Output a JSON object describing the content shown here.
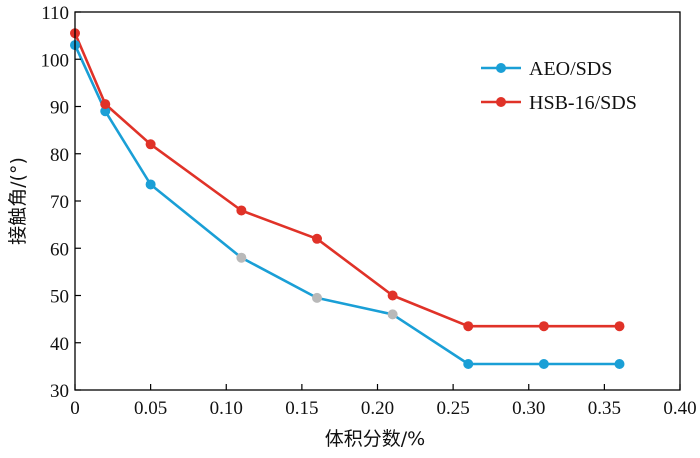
{
  "chart_data": {
    "type": "line",
    "xlabel": "体积分数/%",
    "ylabel": "接触角/(°)",
    "xlim": [
      0,
      0.4
    ],
    "ylim": [
      30,
      110
    ],
    "x_ticks": [
      "0",
      "0.05",
      "0.10",
      "0.15",
      "0.20",
      "0.25",
      "0.30",
      "0.35",
      "0.40"
    ],
    "y_ticks": [
      "30",
      "40",
      "50",
      "60",
      "70",
      "80",
      "90",
      "100",
      "110"
    ],
    "legend_position": "top-right",
    "grid": false,
    "series": [
      {
        "name": "AEO/SDS",
        "color": "#1a9fd6",
        "x": [
          0,
          0.02,
          0.05,
          0.11,
          0.16,
          0.21,
          0.26,
          0.31,
          0.36
        ],
        "y": [
          103,
          89,
          73.5,
          58,
          49.5,
          46,
          35.5,
          35.5,
          35.5
        ],
        "marker_colors": [
          "#1a9fd6",
          "#1a9fd6",
          "#1a9fd6",
          "#b9b9b9",
          "#b9b9b9",
          "#b9b9b9",
          "#1a9fd6",
          "#1a9fd6",
          "#1a9fd6"
        ]
      },
      {
        "name": "HSB-16/SDS",
        "color": "#e03228",
        "x": [
          0,
          0.02,
          0.05,
          0.11,
          0.16,
          0.21,
          0.26,
          0.31,
          0.36
        ],
        "y": [
          105.5,
          90.5,
          82,
          68,
          62,
          50,
          43.5,
          43.5,
          43.5
        ],
        "marker_colors": [
          "#e03228",
          "#e03228",
          "#e03228",
          "#e03228",
          "#e03228",
          "#e03228",
          "#e03228",
          "#e03228",
          "#e03228"
        ]
      }
    ]
  }
}
